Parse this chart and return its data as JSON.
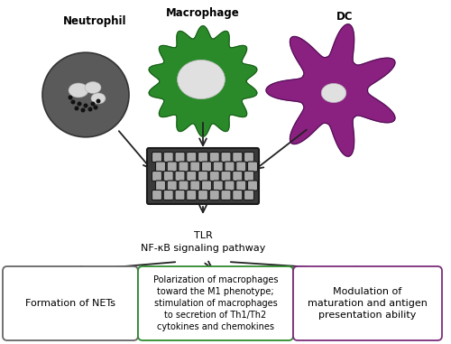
{
  "bg_color": "#ffffff",
  "labels": {
    "neutrophil": "Neutrophil",
    "macrophage": "Macrophage",
    "dc": "DC",
    "tlr": "TLR\nNF-κB signaling pathway",
    "nets": "Formation of NETs",
    "macro_effect": "Polarization of macrophages\ntoward the M1 phenotype;\nstimulation of macrophages\nto secretion of Th1/Th2\ncytokines and chemokines",
    "dc_effect": "Modulation of\nmaturation and antigen\npresentation ability"
  },
  "box_border_colors": {
    "nets": "#666666",
    "macro": "#2e8b2e",
    "dc": "#7b2d7b"
  },
  "cell_colors": {
    "neutrophil": "#5a5a5a",
    "macrophage": "#2a8a2a",
    "dc": "#8a2080"
  },
  "arrow_color": "#222222",
  "graphene_fill": "#3a3a3a",
  "graphene_edge": "#1a1a1a",
  "graphene_node": "#888888"
}
